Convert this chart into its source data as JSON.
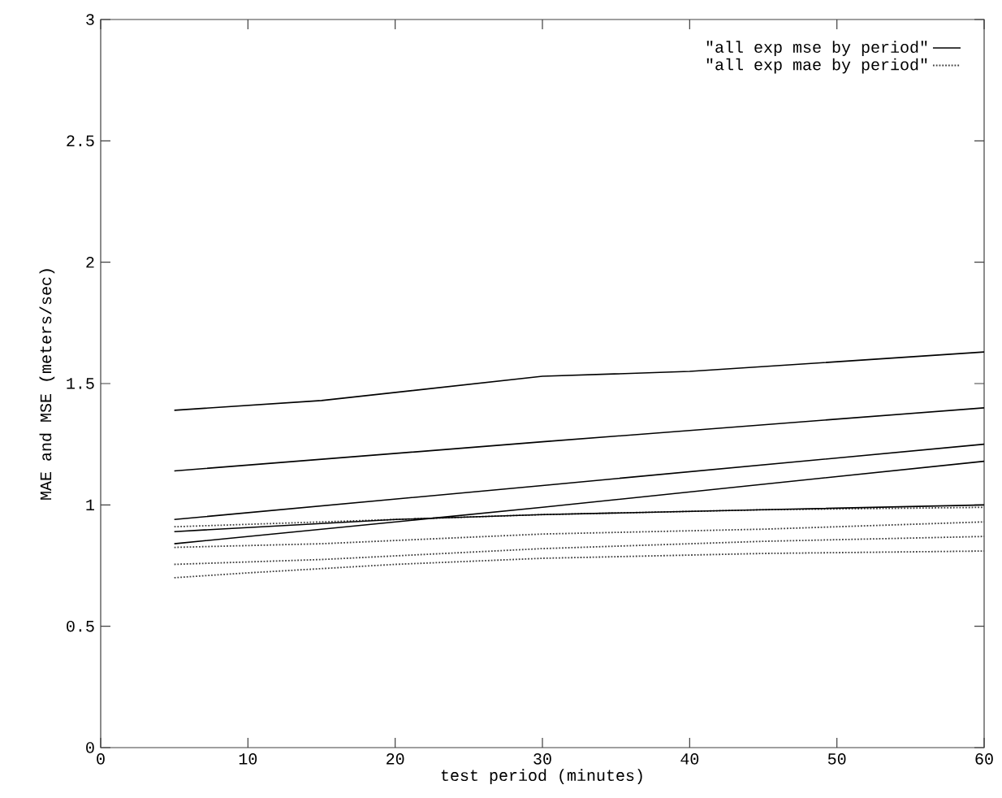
{
  "chart_data": {
    "type": "line",
    "xlabel": "test period (minutes)",
    "ylabel": "MAE and MSE (meters/sec)",
    "xlim": [
      0,
      60
    ],
    "ylim": [
      0,
      3
    ],
    "xticks": [
      0,
      10,
      20,
      30,
      40,
      50,
      60
    ],
    "yticks": [
      0,
      0.5,
      1,
      1.5,
      2,
      2.5,
      3
    ],
    "legend": "top right",
    "series": [
      {
        "name": "\"all exp mse by period\"",
        "color": "#000000",
        "line_style": "solid",
        "x": [
          5,
          15,
          30,
          40,
          60
        ],
        "values": [
          1.39,
          1.43,
          1.53,
          1.55,
          1.63
        ]
      },
      {
        "name": "\"all exp mae by period\"",
        "color": "#404040",
        "line_style": "dotted",
        "x": [
          5,
          15,
          30,
          45,
          60
        ],
        "values": [
          0.91,
          0.93,
          0.96,
          0.98,
          0.99
        ]
      },
      {
        "color": "#000000",
        "line_style": "solid",
        "x": [
          5,
          30,
          60
        ],
        "values": [
          1.14,
          1.26,
          1.4
        ]
      },
      {
        "color": "#000000",
        "line_style": "solid",
        "x": [
          5,
          30,
          60
        ],
        "values": [
          0.94,
          1.08,
          1.25
        ]
      },
      {
        "color": "#000000",
        "line_style": "solid",
        "x": [
          5,
          30,
          60
        ],
        "values": [
          0.84,
          0.99,
          1.18
        ]
      },
      {
        "color": "#000000",
        "line_style": "solid",
        "x": [
          5,
          20,
          30,
          45,
          60
        ],
        "values": [
          0.89,
          0.94,
          0.96,
          0.98,
          1.0
        ]
      },
      {
        "color": "#404040",
        "line_style": "dotted",
        "x": [
          5,
          15,
          30,
          45,
          60
        ],
        "values": [
          0.825,
          0.84,
          0.88,
          0.9,
          0.93
        ]
      },
      {
        "color": "#404040",
        "line_style": "dotted",
        "x": [
          5,
          15,
          30,
          45,
          60
        ],
        "values": [
          0.755,
          0.775,
          0.82,
          0.85,
          0.87
        ]
      },
      {
        "color": "#404040",
        "line_style": "dotted",
        "x": [
          5,
          10,
          20,
          30,
          45,
          60
        ],
        "values": [
          0.7,
          0.72,
          0.755,
          0.78,
          0.8,
          0.81
        ]
      }
    ]
  }
}
